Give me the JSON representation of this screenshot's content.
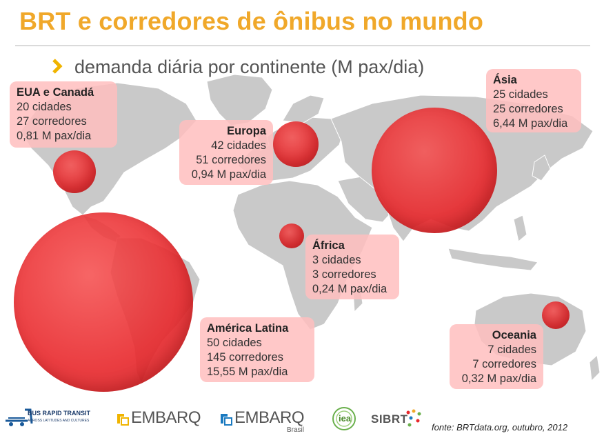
{
  "title": "BRT e corredores de ônibus no mundo",
  "subtitle": "demanda diária por continente (M pax/dia)",
  "colors": {
    "title": "#f0a82a",
    "bubble": "#e8282c",
    "box": "#ffbebe",
    "map_land": "#c9c9c9"
  },
  "regions": [
    {
      "id": "usa",
      "name": "EUA e Canadá",
      "cities": "20 cidades",
      "corridors": "27 corredores",
      "demand": "0,81 M pax/dia",
      "demand_value": 0.81
    },
    {
      "id": "europe",
      "name": "Europa",
      "cities": "42 cidades",
      "corridors": "51 corredores",
      "demand": "0,94 M pax/dia",
      "demand_value": 0.94
    },
    {
      "id": "asia",
      "name": "Ásia",
      "cities": "25 cidades",
      "corridors": "25 corredores",
      "demand": "6,44 M pax/dia",
      "demand_value": 6.44
    },
    {
      "id": "africa",
      "name": "África",
      "cities": "3 cidades",
      "corridors": "3 corredores",
      "demand": "0,24 M pax/dia",
      "demand_value": 0.24
    },
    {
      "id": "latam",
      "name": "América Latina",
      "cities": "50 cidades",
      "corridors": "145 corredores",
      "demand": "15,55 M pax/dia",
      "demand_value": 15.55
    },
    {
      "id": "oceania",
      "name": "Oceania",
      "cities": "7 cidades",
      "corridors": "7 corredores",
      "demand": "0,32 M pax/dia",
      "demand_value": 0.32
    }
  ],
  "logos": {
    "brt_title": "BUS RAPID TRANSIT",
    "brt_sub": "ACROSS LATITUDES AND CULTURES",
    "embarq1": "EMBARQ",
    "embarq2": "EMBARQ",
    "embarq2_sub": "Brasil",
    "iea": "iea",
    "sibrt": "SIBRT"
  },
  "source": "fonte: BRTdata.org, outubro, 2012"
}
